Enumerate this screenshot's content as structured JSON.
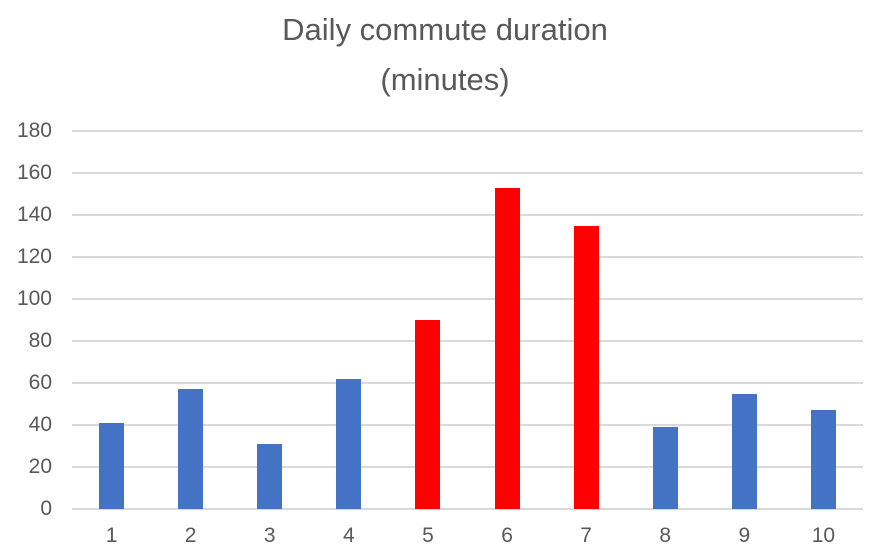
{
  "title": {
    "line1": "Daily commute duration",
    "line2": "(minutes)"
  },
  "chart_data": {
    "type": "bar",
    "title": "Daily commute duration (minutes)",
    "categories": [
      "1",
      "2",
      "3",
      "4",
      "5",
      "6",
      "7",
      "8",
      "9",
      "10"
    ],
    "values": [
      41,
      57,
      31,
      62,
      90,
      153,
      135,
      39,
      55,
      47
    ],
    "bar_colors": [
      "#4472C4",
      "#4472C4",
      "#4472C4",
      "#4472C4",
      "#FF0000",
      "#FF0000",
      "#FF0000",
      "#4472C4",
      "#4472C4",
      "#4472C4"
    ],
    "xlabel": "",
    "ylabel": "",
    "ylim": [
      0,
      180
    ],
    "yticks": [
      0,
      20,
      40,
      60,
      80,
      100,
      120,
      140,
      160,
      180
    ],
    "grid": true,
    "legend": "none",
    "colors": {
      "gridline": "#d9d9d9",
      "text": "#595959",
      "background": "#ffffff",
      "bar_blue": "#4472C4",
      "bar_red": "#FF0000"
    }
  }
}
